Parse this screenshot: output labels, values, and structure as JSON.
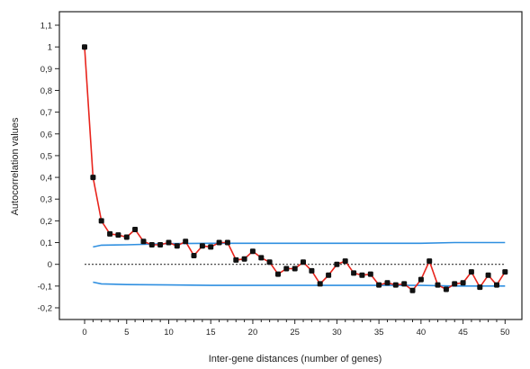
{
  "chart_data": {
    "type": "line",
    "title": "",
    "xlabel": "Inter-gene distances (number of genes)",
    "ylabel": "Autocorrelation values",
    "xlim": [
      -3,
      52
    ],
    "ylim": [
      -0.2,
      1.1
    ],
    "x_ticks": [
      0,
      5,
      10,
      15,
      20,
      25,
      30,
      35,
      40,
      45,
      50
    ],
    "x_tick_labels": [
      "0",
      "5",
      "10",
      "15",
      "20",
      "25",
      "30",
      "35",
      "40",
      "45",
      "50"
    ],
    "y_ticks": [
      -0.2,
      -0.1,
      0,
      0.1,
      0.2,
      0.3,
      0.4,
      0.5,
      0.6,
      0.7,
      0.8,
      0.9,
      1,
      1.1
    ],
    "y_tick_labels": [
      "-0,2",
      "-0,1",
      "0",
      "0,1",
      "0,2",
      "0,3",
      "0,4",
      "0,5",
      "0,6",
      "0,7",
      "0,8",
      "0,9",
      "1",
      "1,1"
    ],
    "grid": false,
    "legend": "none",
    "colors": {
      "autocorrelation": "#e8241c",
      "markers": "#111111",
      "confidence_band": "#2f8fe0",
      "zero_line": "#333333",
      "frame": "#222222"
    },
    "series": [
      {
        "role": "autocorrelation",
        "x": [
          0,
          1,
          2,
          3,
          4,
          5,
          6,
          7,
          8,
          9,
          10,
          11,
          12,
          13,
          14,
          15,
          16,
          17,
          18,
          19,
          20,
          21,
          22,
          23,
          24,
          25,
          26,
          27,
          28,
          29,
          30,
          31,
          32,
          33,
          34,
          35,
          36,
          37,
          38,
          39,
          40,
          41,
          42,
          43,
          44,
          45,
          46,
          47,
          48,
          49,
          50
        ],
        "values": [
          1.0,
          0.4,
          0.2,
          0.14,
          0.135,
          0.125,
          0.16,
          0.105,
          0.09,
          0.09,
          0.1,
          0.085,
          0.105,
          0.04,
          0.085,
          0.08,
          0.1,
          0.1,
          0.02,
          0.025,
          0.06,
          0.03,
          0.01,
          -0.045,
          -0.02,
          -0.02,
          0.01,
          -0.03,
          -0.09,
          -0.05,
          0.0,
          0.015,
          -0.04,
          -0.05,
          -0.045,
          -0.095,
          -0.085,
          -0.095,
          -0.09,
          -0.12,
          -0.07,
          0.015,
          -0.095,
          -0.115,
          -0.09,
          -0.085,
          -0.035,
          -0.105,
          -0.05,
          -0.095,
          -0.035
        ]
      },
      {
        "role": "upper-confidence",
        "x": [
          1,
          2,
          5,
          10,
          15,
          20,
          30,
          40,
          44,
          50
        ],
        "values": [
          0.08,
          0.088,
          0.09,
          0.095,
          0.097,
          0.097,
          0.097,
          0.097,
          0.1,
          0.1
        ]
      },
      {
        "role": "lower-confidence",
        "x": [
          1,
          2,
          5,
          10,
          15,
          20,
          30,
          40,
          44,
          50
        ],
        "values": [
          -0.082,
          -0.09,
          -0.093,
          -0.095,
          -0.097,
          -0.097,
          -0.097,
          -0.097,
          -0.1,
          -0.1
        ]
      }
    ]
  }
}
